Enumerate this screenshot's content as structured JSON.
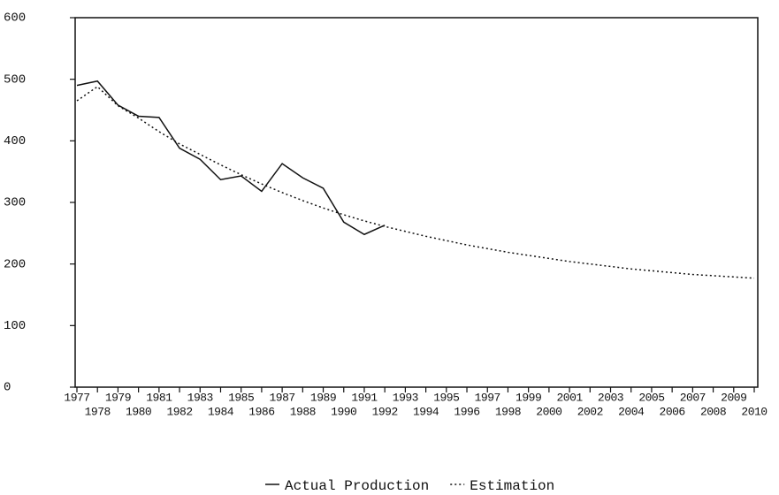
{
  "chart_data": {
    "type": "line",
    "categories": [
      "1977",
      "1978",
      "1979",
      "1980",
      "1981",
      "1982",
      "1983",
      "1984",
      "1985",
      "1986",
      "1987",
      "1988",
      "1989",
      "1990",
      "1991",
      "1992",
      "1993",
      "1994",
      "1995",
      "1996",
      "1997",
      "1998",
      "1999",
      "2000",
      "2001",
      "2002",
      "2003",
      "2004",
      "2005",
      "2006",
      "2007",
      "2008",
      "2009",
      "2010"
    ],
    "series": [
      {
        "name": "Actual Production",
        "color": "#111111",
        "dash": "solid",
        "values": [
          490,
          497,
          458,
          440,
          438,
          388,
          370,
          337,
          343,
          318,
          363,
          340,
          323,
          268,
          248,
          263,
          null,
          null,
          null,
          null,
          null,
          null,
          null,
          null,
          null,
          null,
          null,
          null,
          null,
          null,
          null,
          null,
          null,
          null
        ]
      },
      {
        "name": "Estimation",
        "color": "#111111",
        "dash": "dotted",
        "values": [
          465,
          488,
          457,
          437,
          415,
          395,
          378,
          361,
          345,
          330,
          316,
          303,
          291,
          280,
          270,
          261,
          253,
          245,
          238,
          231,
          225,
          219,
          214,
          209,
          204,
          200,
          196,
          192,
          189,
          186,
          183,
          181,
          179,
          177
        ]
      }
    ],
    "ylim": [
      0,
      600
    ],
    "yticks": [
      0,
      100,
      200,
      300,
      400,
      500,
      600
    ],
    "grid": false,
    "legend": "bottom"
  }
}
